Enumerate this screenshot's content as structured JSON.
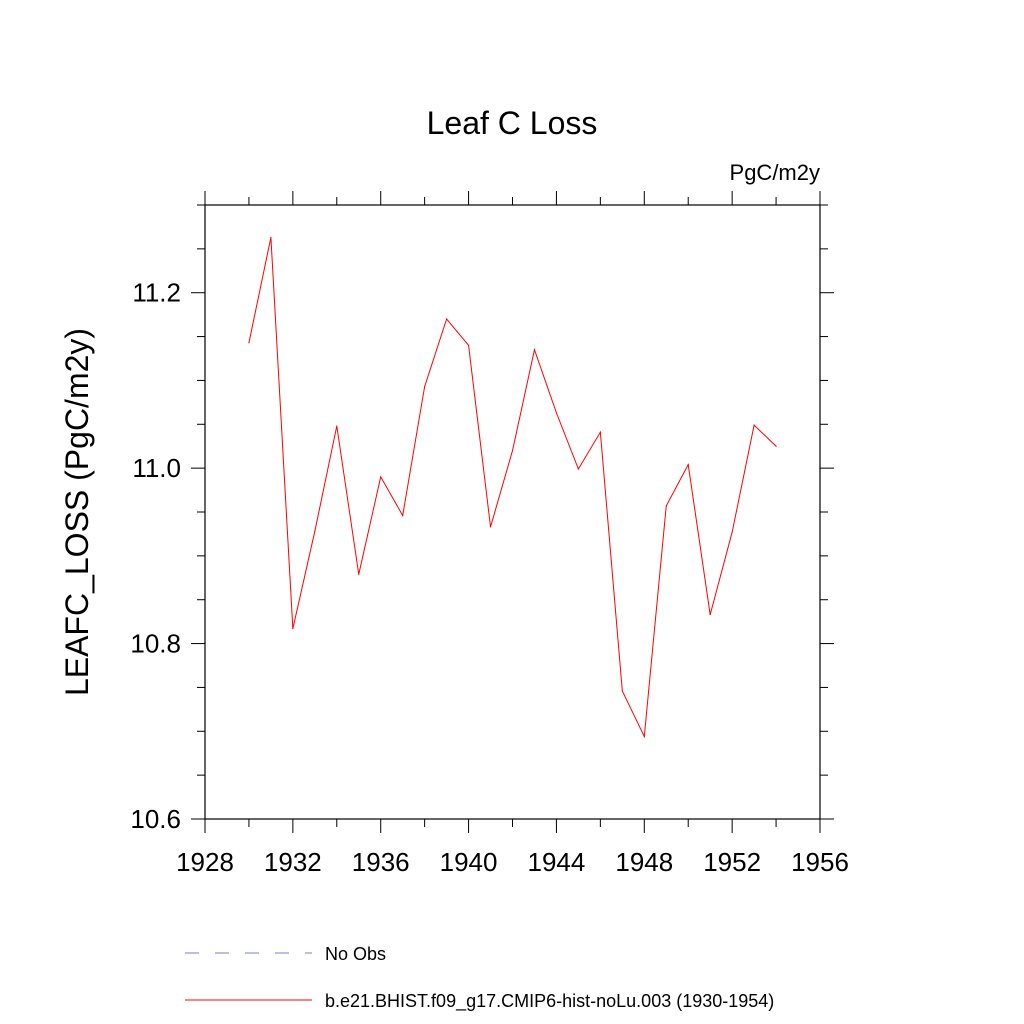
{
  "chart_data": {
    "type": "line",
    "title": "Leaf C Loss",
    "units": "PgC/m2y",
    "ylabel": "LEAFC_LOSS  (PgC/m2y)",
    "xlabel": "",
    "xlim": [
      1928,
      1956
    ],
    "ylim": [
      10.6,
      11.3
    ],
    "x_ticks": [
      1928,
      1932,
      1936,
      1940,
      1944,
      1948,
      1952,
      1956
    ],
    "x_tick_labels": [
      "1928",
      "1932",
      "1936",
      "1940",
      "1944",
      "1948",
      "1952",
      "1956"
    ],
    "y_ticks": [
      10.6,
      10.8,
      11.0,
      11.2
    ],
    "y_tick_labels": [
      "10.6",
      "10.8",
      "11.0",
      "11.2"
    ],
    "grid": false,
    "series": [
      {
        "name": "b.e21.BHIST.f09_g17.CMIP6-hist-noLu.003 (1930-1954)",
        "color": "#ff0000",
        "style": "solid",
        "x": [
          1930,
          1931,
          1932,
          1933,
          1934,
          1935,
          1936,
          1937,
          1938,
          1939,
          1940,
          1941,
          1942,
          1943,
          1944,
          1945,
          1946,
          1947,
          1948,
          1949,
          1950,
          1951,
          1952,
          1953,
          1954
        ],
        "values": [
          11.143,
          11.263,
          10.817,
          10.928,
          11.048,
          10.879,
          10.99,
          10.946,
          11.093,
          11.17,
          11.14,
          10.933,
          11.02,
          11.135,
          11.063,
          10.999,
          11.041,
          10.746,
          10.694,
          10.957,
          11.004,
          10.833,
          10.927,
          11.049,
          11.025
        ]
      }
    ],
    "legend": [
      {
        "label": "No Obs",
        "color": "#7b7bd6",
        "style": "dashed"
      },
      {
        "label": "b.e21.BHIST.f09_g17.CMIP6-hist-noLu.003 (1930-1954)",
        "color": "#ff0000",
        "style": "solid"
      }
    ],
    "legend_position": "bottom"
  }
}
